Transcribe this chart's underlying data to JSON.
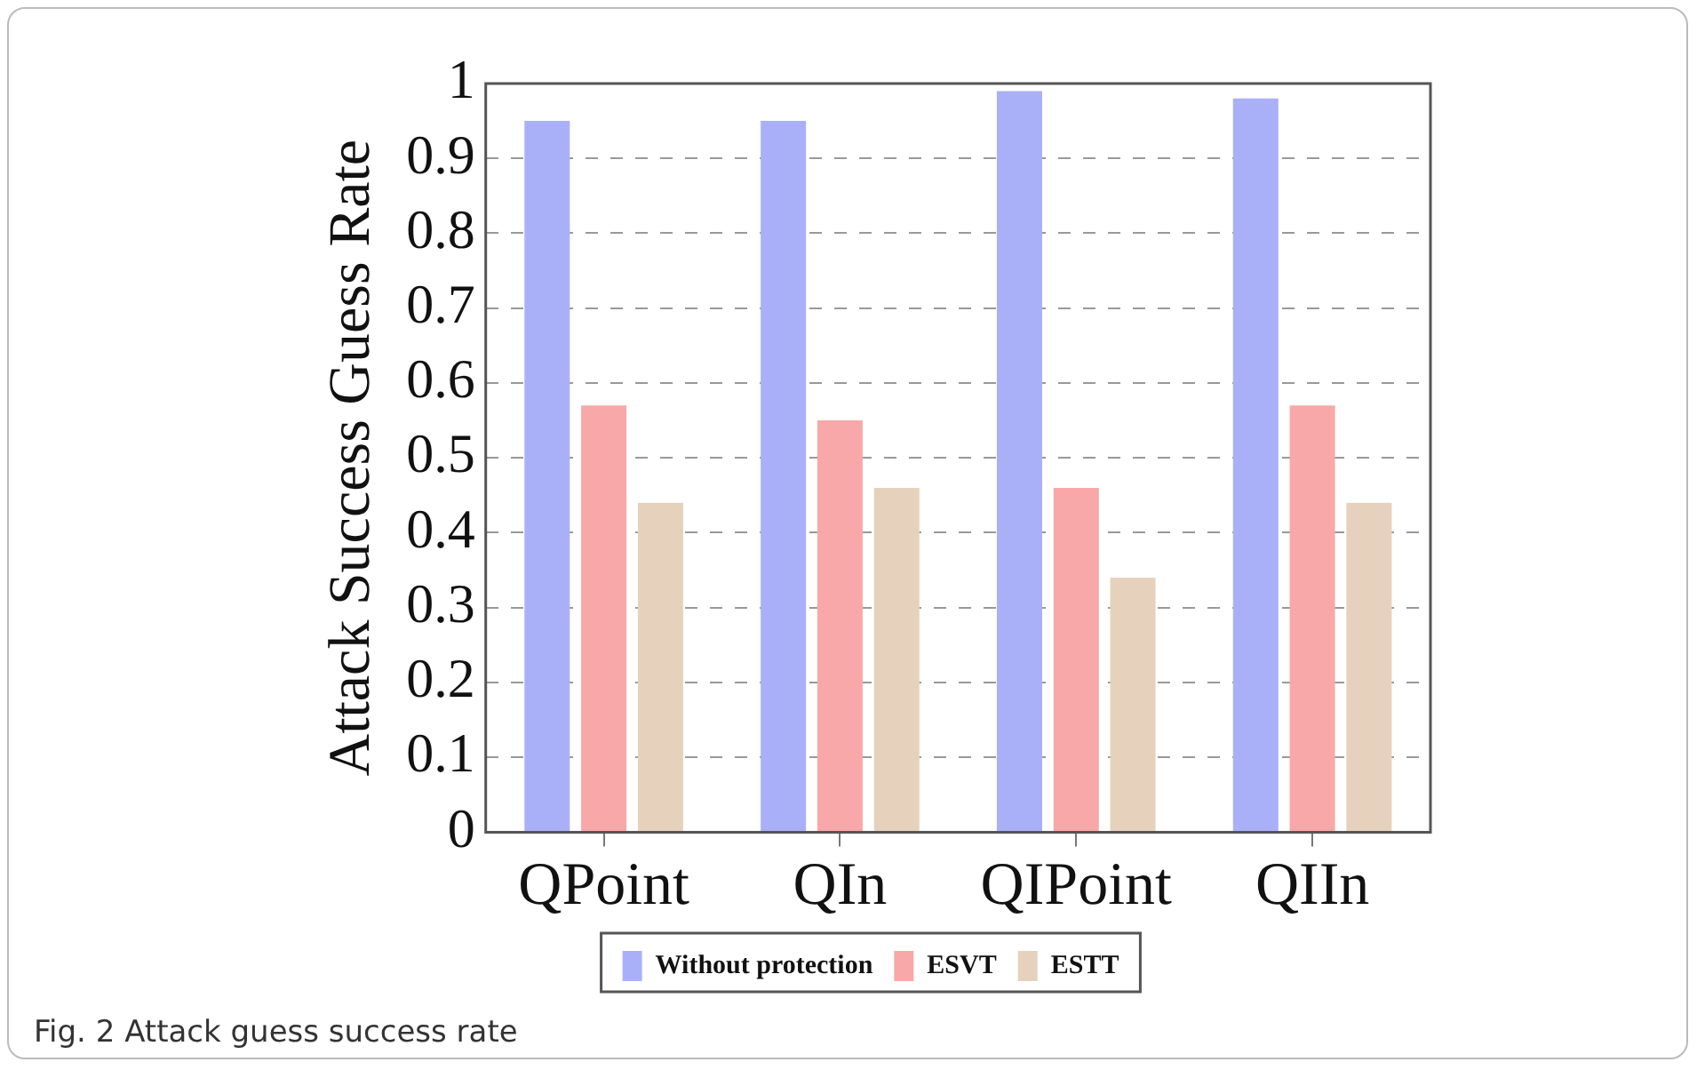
{
  "chart_data": {
    "type": "bar",
    "ylabel": "Attack Success Guess Rate",
    "categories": [
      "QPoint",
      "QIn",
      "QIPoint",
      "QIIn"
    ],
    "series": [
      {
        "name": "Without protection",
        "color": "#aab0f8",
        "values": [
          0.95,
          0.95,
          0.99,
          0.98
        ]
      },
      {
        "name": "ESVT",
        "color": "#f8a8a8",
        "values": [
          0.57,
          0.55,
          0.46,
          0.57
        ]
      },
      {
        "name": "ESTT",
        "color": "#e6d2bc",
        "values": [
          0.44,
          0.46,
          0.34,
          0.44
        ]
      }
    ],
    "ylim": [
      0,
      1
    ],
    "yticks": [
      0,
      0.1,
      0.2,
      0.3,
      0.4,
      0.5,
      0.6,
      0.7,
      0.8,
      0.9,
      1
    ],
    "grid": "y",
    "legend": "bottom",
    "annotations": [
      "Fig. 2 Attack guess success rate"
    ]
  }
}
